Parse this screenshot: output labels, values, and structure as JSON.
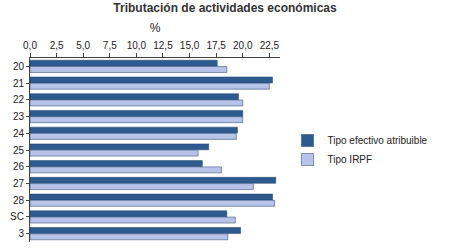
{
  "chart_data": {
    "type": "bar",
    "title": "Tributación de actividades económicas",
    "x_label": "%",
    "orientation": "horizontal",
    "categories": [
      "20",
      "21",
      "22",
      "23",
      "24",
      "25",
      "26",
      "27",
      "28",
      "SC",
      "3"
    ],
    "series": [
      {
        "name": "Tipo efectivo atribuible",
        "color": "#2e5b8f",
        "values": [
          17.6,
          22.8,
          19.6,
          20.0,
          19.5,
          16.8,
          16.2,
          23.1,
          22.8,
          18.5,
          19.8
        ]
      },
      {
        "name": "Tipo IRPF",
        "color": "#b7c3e8",
        "values": [
          18.5,
          22.5,
          20.0,
          20.0,
          19.4,
          15.8,
          18.0,
          21.0,
          23.0,
          19.3,
          18.6
        ]
      }
    ],
    "xlim": [
      0,
      23.5
    ],
    "xticks": [
      {
        "value": 0,
        "label": "0,0"
      },
      {
        "value": 2.5,
        "label": "2,5"
      },
      {
        "value": 5,
        "label": "5,0"
      },
      {
        "value": 7.5,
        "label": "7,5"
      },
      {
        "value": 10,
        "label": "10,0"
      },
      {
        "value": 12.5,
        "label": "12,5"
      },
      {
        "value": 15,
        "label": "15,0"
      },
      {
        "value": 17.5,
        "label": "17,5"
      },
      {
        "value": 20,
        "label": "20,0"
      },
      {
        "value": 22.5,
        "label": "22,5"
      }
    ],
    "grid": false,
    "legend": "right"
  }
}
